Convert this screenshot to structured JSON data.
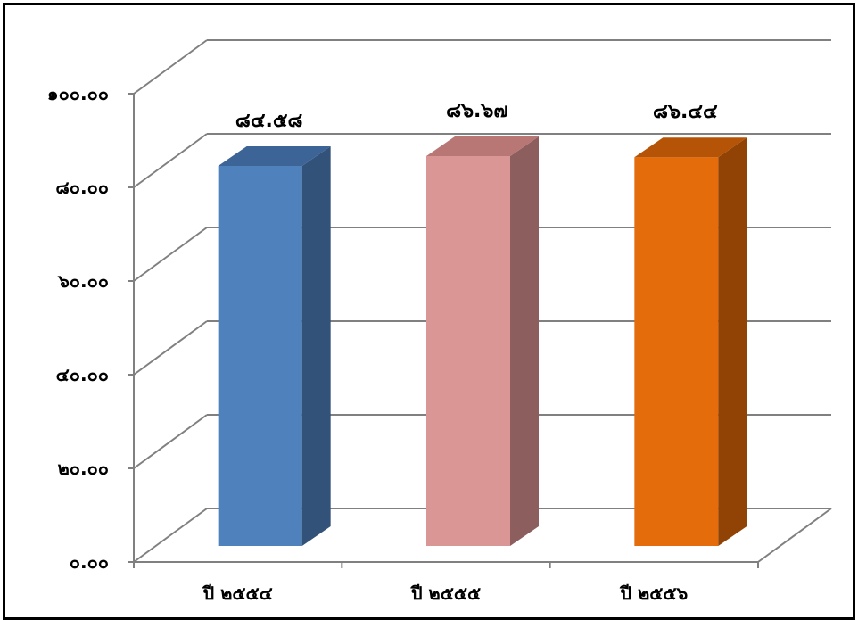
{
  "chart_data": {
    "type": "bar",
    "categories": [
      "ปี ๒๕๕๔",
      "ปี ๒๕๕๕",
      "ปี ๒๕๕๖"
    ],
    "values": [
      84.58,
      86.67,
      86.44
    ],
    "value_labels": [
      "๘๔.๕๘",
      "๘๖.๖๗",
      "๘๖.๔๔"
    ],
    "ylim": [
      0,
      100
    ],
    "yticks": [
      0,
      20,
      40,
      60,
      80,
      100
    ],
    "ytick_labels": [
      "๐.๐๐",
      "๒๐.๐๐",
      "๔๐.๐๐",
      "๖๐.๐๐",
      "๘๐.๐๐",
      "๑๐๐.๐๐"
    ],
    "grid": true,
    "legend": "none",
    "style": "3d-column",
    "colors": [
      {
        "front": "#4f81bd",
        "side": "#33527a",
        "top": "#3d6496"
      },
      {
        "front": "#d99694",
        "side": "#8c5f5e",
        "top": "#b87775"
      },
      {
        "front": "#e46c0a",
        "side": "#914305",
        "top": "#b55406"
      }
    ],
    "title": "",
    "xlabel": "",
    "ylabel": ""
  }
}
